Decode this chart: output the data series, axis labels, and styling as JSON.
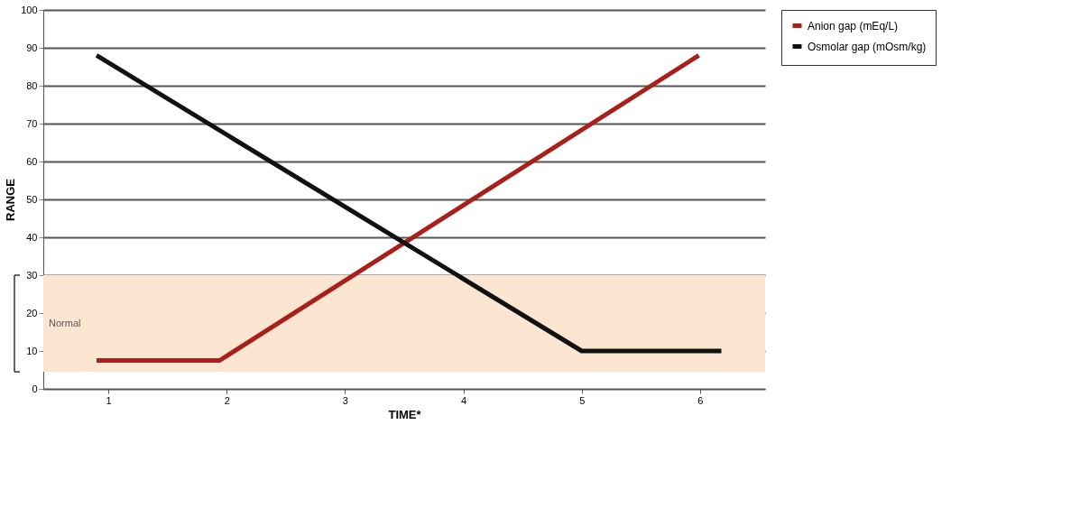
{
  "chart_data": {
    "type": "line",
    "xlabel": "TIME*",
    "ylabel": "RANGE",
    "xlim": [
      0.45,
      6.55
    ],
    "xticks": [
      1,
      2,
      3,
      4,
      5,
      6
    ],
    "ylim": [
      0,
      100
    ],
    "yticks": [
      0,
      10,
      20,
      30,
      40,
      50,
      60,
      70,
      80,
      90,
      100
    ],
    "series": [
      {
        "name": "Anion gap (mEq/L)",
        "color": "#a8201a",
        "x": [
          0.9,
          1.94,
          5.99
        ],
        "values": [
          7.5,
          7.5,
          88
        ]
      },
      {
        "name": "Osmolar gap (mOsm/kg)",
        "color": "#111111",
        "x": [
          0.9,
          5.0,
          6.18
        ],
        "values": [
          88,
          10,
          10
        ]
      }
    ],
    "bands": [
      {
        "axis": "y",
        "from": 4.5,
        "to": 30,
        "label": "Normal",
        "color": "#fce6d2"
      }
    ],
    "grid": "y",
    "legend": "right",
    "marker": "none",
    "line_style": "solid"
  }
}
